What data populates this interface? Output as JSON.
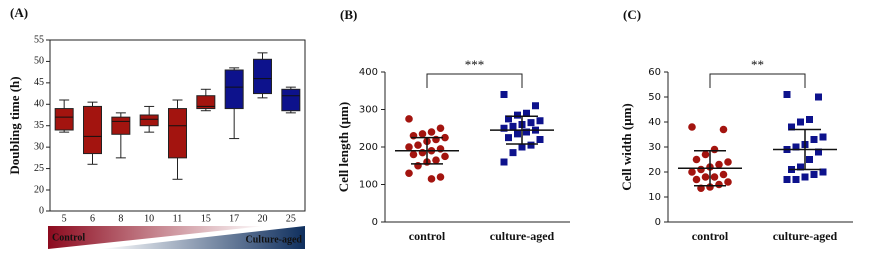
{
  "chart_data": [
    {
      "type": "box",
      "panel": "(A)",
      "ylabel": "Doubling time (h)",
      "categories": [
        "5",
        "6",
        "8",
        "10",
        "11",
        "15",
        "17",
        "20",
        "25"
      ],
      "boxes": [
        {
          "min": 33.5,
          "q1": 34,
          "median": 37,
          "q3": 39,
          "max": 41,
          "color": "#a3140f"
        },
        {
          "min": 26,
          "q1": 28.5,
          "median": 32.5,
          "q3": 39.5,
          "max": 40.5,
          "color": "#a3140f"
        },
        {
          "min": 27.5,
          "q1": 33,
          "median": 36,
          "q3": 37,
          "max": 38,
          "color": "#a3140f"
        },
        {
          "min": 33.5,
          "q1": 35,
          "median": 36.5,
          "q3": 37.5,
          "max": 39.5,
          "color": "#a3140f"
        },
        {
          "min": 22.5,
          "q1": 27.5,
          "median": 35,
          "q3": 39,
          "max": 41,
          "color": "#a3140f"
        },
        {
          "min": 38.5,
          "q1": 39,
          "median": 39.5,
          "q3": 42,
          "max": 43.5,
          "color": "#a3140f"
        },
        {
          "min": 32,
          "q1": 39,
          "median": 44,
          "q3": 48,
          "max": 48.5,
          "color": "#0d128c"
        },
        {
          "min": 41.5,
          "q1": 42.5,
          "median": 46,
          "q3": 50.5,
          "max": 52,
          "color": "#0d128c"
        },
        {
          "min": 38,
          "q1": 38.5,
          "median": 42,
          "q3": 43.5,
          "max": 44,
          "color": "#0d128c"
        }
      ],
      "ylim": [
        0,
        55
      ],
      "axis_break": [
        0,
        20
      ],
      "yticks": [
        0,
        20,
        25,
        30,
        35,
        40,
        45,
        50,
        55
      ],
      "gradient_labels": [
        "Control",
        "Culture-aged"
      ]
    },
    {
      "type": "dot",
      "panel": "(B)",
      "ylabel": "Cell length (μm)",
      "categories": [
        "control",
        "culture-aged"
      ],
      "groups": [
        {
          "color": "#a3140f",
          "marker": "circle",
          "mean": 190,
          "sd": 35,
          "values": [
            275,
            250,
            240,
            235,
            230,
            225,
            220,
            215,
            205,
            200,
            195,
            190,
            185,
            180,
            175,
            165,
            160,
            150,
            130,
            120,
            115
          ]
        },
        {
          "color": "#0d128c",
          "marker": "square",
          "mean": 245,
          "sd": 37,
          "values": [
            340,
            310,
            290,
            285,
            275,
            270,
            265,
            260,
            255,
            250,
            245,
            240,
            235,
            225,
            220,
            205,
            200,
            185,
            160
          ]
        }
      ],
      "annotation": "***",
      "ylim": [
        0,
        400
      ],
      "yticks": [
        0,
        100,
        200,
        300,
        400
      ]
    },
    {
      "type": "dot",
      "panel": "(C)",
      "ylabel": "Cell width  (μm)",
      "categories": [
        "control",
        "culture-aged"
      ],
      "groups": [
        {
          "color": "#a3140f",
          "marker": "circle",
          "mean": 21.5,
          "sd": 7,
          "values": [
            38,
            37,
            29,
            27,
            25,
            24,
            23,
            22,
            21,
            20,
            19,
            18,
            18,
            17,
            16,
            15,
            14,
            13.5
          ]
        },
        {
          "color": "#0d128c",
          "marker": "square",
          "mean": 29,
          "sd": 8,
          "values": [
            51,
            50,
            41,
            40,
            38,
            34,
            33,
            31,
            30,
            29,
            28,
            25,
            22,
            21,
            20,
            19,
            18,
            17,
            17
          ]
        }
      ],
      "annotation": "**",
      "ylim": [
        0,
        60
      ],
      "yticks": [
        0,
        10,
        20,
        30,
        40,
        50,
        60
      ]
    }
  ]
}
